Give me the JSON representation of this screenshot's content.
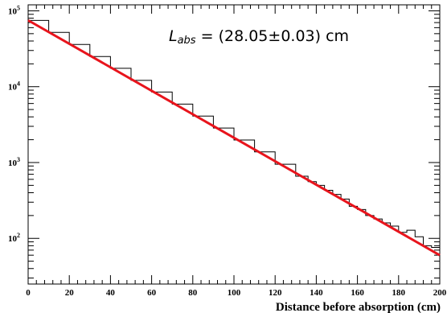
{
  "chart_data": {
    "type": "line",
    "title": "",
    "xlabel": "Distance before absorption (cm)",
    "ylabel": "",
    "xlim": [
      0,
      200
    ],
    "ylim": [
      25,
      120000
    ],
    "y_scale": "log",
    "grid": false,
    "x_ticks": [
      0,
      20,
      40,
      60,
      80,
      100,
      120,
      140,
      160,
      180,
      200
    ],
    "x_tick_labels": [
      "0",
      "20",
      "40",
      "60",
      "80",
      "100",
      "120",
      "140",
      "160",
      "180",
      "200"
    ],
    "y_ticks": [
      {
        "value": 100,
        "base": "10",
        "exp": "2"
      },
      {
        "value": 1000,
        "base": "10",
        "exp": "3"
      },
      {
        "value": 10000,
        "base": "10",
        "exp": "4"
      },
      {
        "value": 100000,
        "base": "10",
        "exp": "5"
      }
    ],
    "annotation": {
      "symbol": "L",
      "subscript": "abs",
      "value_text": " = (28.05±0.03) cm"
    },
    "series": [
      {
        "kind": "histogram",
        "color": "#000000",
        "x": [
          0,
          10,
          20,
          30,
          40,
          50,
          60,
          70,
          80,
          90,
          100,
          110,
          120,
          130,
          136,
          140,
          144,
          148,
          152,
          156,
          160,
          164,
          168,
          172,
          176,
          180,
          184,
          188,
          192,
          196
        ],
        "y": [
          74800,
          52000,
          36000,
          25000,
          17500,
          12100,
          8500,
          5900,
          4100,
          2850,
          1980,
          1380,
          950,
          660,
          560,
          500,
          430,
          380,
          330,
          265,
          240,
          200,
          180,
          160,
          145,
          120,
          128,
          105,
          80,
          76
        ]
      },
      {
        "kind": "fit",
        "color": "#e8141c",
        "x": [
          0,
          200
        ],
        "y": [
          75000,
          60
        ]
      }
    ]
  }
}
